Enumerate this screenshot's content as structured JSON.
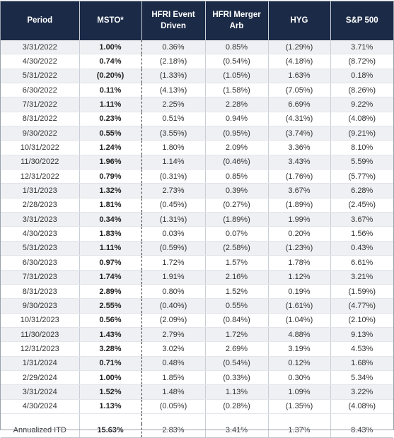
{
  "headers": [
    "Period",
    "MSTO*",
    "HFRI Event Driven",
    "HFRI Merger Arb",
    "HYG",
    "S&P 500"
  ],
  "header_lines": [
    [
      "Period"
    ],
    [
      "MSTO*"
    ],
    [
      "HFRI Event",
      "Driven"
    ],
    [
      "HFRI Merger",
      "Arb"
    ],
    [
      "HYG"
    ],
    [
      "S&P 500"
    ]
  ],
  "rows": [
    [
      "3/31/2022",
      "1.00%",
      "0.36%",
      "0.85%",
      "(1.29%)",
      "3.71%"
    ],
    [
      "4/30/2022",
      "0.74%",
      "(2.18%)",
      "(0.54%)",
      "(4.18%)",
      "(8.72%)"
    ],
    [
      "5/31/2022",
      "(0.20%)",
      "(1.33%)",
      "(1.05%)",
      "1.63%",
      "0.18%"
    ],
    [
      "6/30/2022",
      "0.11%",
      "(4.13%)",
      "(1.58%)",
      "(7.05%)",
      "(8.26%)"
    ],
    [
      "7/31/2022",
      "1.11%",
      "2.25%",
      "2.28%",
      "6.69%",
      "9.22%"
    ],
    [
      "8/31/2022",
      "0.23%",
      "0.51%",
      "0.94%",
      "(4.31%)",
      "(4.08%)"
    ],
    [
      "9/30/2022",
      "0.55%",
      "(3.55%)",
      "(0.95%)",
      "(3.74%)",
      "(9.21%)"
    ],
    [
      "10/31/2022",
      "1.24%",
      "1.80%",
      "2.09%",
      "3.36%",
      "8.10%"
    ],
    [
      "11/30/2022",
      "1.96%",
      "1.14%",
      "(0.46%)",
      "3.43%",
      "5.59%"
    ],
    [
      "12/31/2022",
      "0.79%",
      "(0.31%)",
      "0.85%",
      "(1.76%)",
      "(5.77%)"
    ],
    [
      "1/31/2023",
      "1.32%",
      "2.73%",
      "0.39%",
      "3.67%",
      "6.28%"
    ],
    [
      "2/28/2023",
      "1.81%",
      "(0.45%)",
      "(0.27%)",
      "(1.89%)",
      "(2.45%)"
    ],
    [
      "3/31/2023",
      "0.34%",
      "(1.31%)",
      "(1.89%)",
      "1.99%",
      "3.67%"
    ],
    [
      "4/30/2023",
      "1.83%",
      "0.03%",
      "0.07%",
      "0.20%",
      "1.56%"
    ],
    [
      "5/31/2023",
      "1.11%",
      "(0.59%)",
      "(2.58%)",
      "(1.23%)",
      "0.43%"
    ],
    [
      "6/30/2023",
      "0.97%",
      "1.72%",
      "1.57%",
      "1.78%",
      "6.61%"
    ],
    [
      "7/31/2023",
      "1.74%",
      "1.91%",
      "2.16%",
      "1.12%",
      "3.21%"
    ],
    [
      "8/31/2023",
      "2.89%",
      "0.80%",
      "1.52%",
      "0.19%",
      "(1.59%)"
    ],
    [
      "9/30/2023",
      "2.55%",
      "(0.40%)",
      "0.55%",
      "(1.61%)",
      "(4.77%)"
    ],
    [
      "10/31/2023",
      "0.56%",
      "(2.09%)",
      "(0.84%)",
      "(1.04%)",
      "(2.10%)"
    ],
    [
      "11/30/2023",
      "1.43%",
      "2.79%",
      "1.72%",
      "4.88%",
      "9.13%"
    ],
    [
      "12/31/2023",
      "3.28%",
      "3.02%",
      "2.69%",
      "3.19%",
      "4.53%"
    ],
    [
      "1/31/2024",
      "0.71%",
      "0.48%",
      "(0.54%)",
      "0.12%",
      "1.68%"
    ],
    [
      "2/29/2024",
      "1.00%",
      "1.85%",
      "(0.33%)",
      "0.30%",
      "5.34%"
    ],
    [
      "3/31/2024",
      "1.52%",
      "1.48%",
      "1.13%",
      "1.09%",
      "3.22%"
    ],
    [
      "4/30/2024",
      "1.13%",
      "(0.05%)",
      "(0.28%)",
      "(1.35%)",
      "(4.08%)"
    ]
  ],
  "total": [
    "Annualized ITD",
    "15.63%",
    "2.83%",
    "3.41%",
    "1.37%",
    "8.43%"
  ],
  "colors": {
    "header_bg": "#1b2a47",
    "header_text": "#ffffff",
    "stripe": "#eef0f3"
  }
}
